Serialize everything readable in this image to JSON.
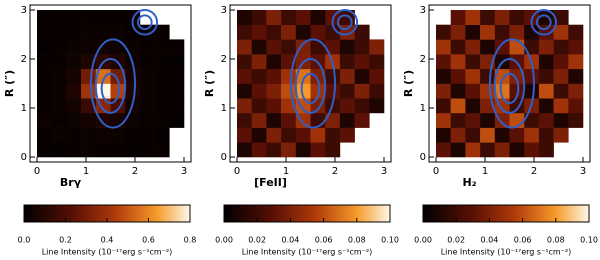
{
  "chart_data": [
    {
      "type": "heatmap",
      "x_label": "Brγ",
      "y_label": "R (″)",
      "xlim": [
        0,
        3
      ],
      "ylim": [
        0,
        3
      ],
      "xticks": [
        0,
        1,
        2,
        3
      ],
      "yticks": [
        0,
        1,
        2,
        3
      ],
      "zlim": [
        0,
        0.8
      ],
      "zticks": [
        {
          "value": 0,
          "label": "0.0"
        },
        0.2,
        0.4,
        0.6,
        0.8
      ],
      "colorbar_label": "Line Intensity (10⁻¹⁷erg s⁻¹cm⁻²)",
      "contour_color": "#2f5fc8",
      "z": [
        [
          0.02,
          0.01,
          0.02,
          0.03,
          0.02,
          0.02,
          0.01,
          0.02,
          0.02,
          null
        ],
        [
          0.02,
          0.03,
          0.02,
          0.03,
          0.04,
          0.03,
          0.02,
          0.02,
          0.01,
          null
        ],
        [
          0.03,
          0.02,
          0.03,
          0.05,
          0.08,
          0.06,
          0.03,
          0.02,
          0.02,
          0.01
        ],
        [
          0.02,
          0.03,
          0.05,
          0.15,
          0.35,
          0.2,
          0.05,
          0.03,
          0.02,
          0.02
        ],
        [
          0.02,
          0.03,
          0.08,
          0.4,
          0.8,
          0.45,
          0.08,
          0.03,
          0.02,
          0.02
        ],
        [
          0.02,
          0.03,
          0.06,
          0.3,
          0.55,
          0.3,
          0.06,
          0.03,
          0.02,
          0.02
        ],
        [
          0.02,
          0.02,
          0.04,
          0.08,
          0.12,
          0.08,
          0.04,
          0.02,
          0.02,
          0.01
        ],
        [
          0.01,
          0.02,
          0.03,
          0.04,
          0.05,
          0.04,
          0.03,
          0.02,
          0.02,
          0.02
        ],
        [
          0.02,
          0.02,
          0.02,
          0.03,
          0.03,
          0.03,
          0.02,
          0.02,
          0.02,
          null
        ],
        [
          0.02,
          0.02,
          0.02,
          0.02,
          0.02,
          0.02,
          0.02,
          null,
          null,
          null
        ]
      ],
      "contours": [
        {
          "x": 1.55,
          "y": 1.5,
          "rx": 0.45,
          "ry": 0.9
        },
        {
          "x": 1.5,
          "y": 1.45,
          "rx": 0.3,
          "ry": 0.55
        },
        {
          "x": 1.5,
          "y": 1.4,
          "rx": 0.18,
          "ry": 0.3
        },
        {
          "x": 2.2,
          "y": 2.75,
          "rx": 0.25,
          "ry": 0.25
        },
        {
          "x": 2.2,
          "y": 2.75,
          "rx": 0.14,
          "ry": 0.14
        }
      ]
    },
    {
      "type": "heatmap",
      "x_label": "[FeII]",
      "y_label": "R (″)",
      "xlim": [
        0,
        3
      ],
      "ylim": [
        0,
        3
      ],
      "xticks": [
        0,
        1,
        2,
        3
      ],
      "yticks": [
        0,
        1,
        2,
        3
      ],
      "zlim": [
        0,
        0.1
      ],
      "zticks": [
        {
          "value": 0,
          "label": "0.00"
        },
        {
          "value": 0.02,
          "label": "0.02"
        },
        {
          "value": 0.04,
          "label": "0.04"
        },
        {
          "value": 0.06,
          "label": "0.06"
        },
        {
          "value": 0.08,
          "label": "0.08"
        },
        {
          "value": 0.1,
          "label": "0.10"
        }
      ],
      "colorbar_label": "Line Intensity (10⁻¹⁷erg s⁻¹cm⁻²)",
      "contour_color": "#2f5fc8",
      "z": [
        [
          0.01,
          0.03,
          0.02,
          0.04,
          0.01,
          0.03,
          0.02,
          null,
          null,
          null
        ],
        [
          0.03,
          0.01,
          0.04,
          0.02,
          0.03,
          0.05,
          0.02,
          0.03,
          null,
          null
        ],
        [
          0.02,
          0.04,
          0.01,
          0.03,
          0.05,
          0.02,
          0.04,
          0.01,
          0.03,
          null
        ],
        [
          0.04,
          0.02,
          0.03,
          0.05,
          0.06,
          0.04,
          0.02,
          0.03,
          0.02,
          0.01
        ],
        [
          0.01,
          0.03,
          0.04,
          0.06,
          0.08,
          0.05,
          0.03,
          0.02,
          0.04,
          0.02
        ],
        [
          0.03,
          0.02,
          0.03,
          0.05,
          0.07,
          0.04,
          0.02,
          0.04,
          0.01,
          0.03
        ],
        [
          0.02,
          0.04,
          0.01,
          0.03,
          0.04,
          0.03,
          0.05,
          0.02,
          0.03,
          0.02
        ],
        [
          0.04,
          0.01,
          0.03,
          0.02,
          0.04,
          0.02,
          0.03,
          0.01,
          0.02,
          0.04
        ],
        [
          0.02,
          0.03,
          0.02,
          0.04,
          0.01,
          0.03,
          0.02,
          0.04,
          0.02,
          null
        ],
        [
          0.01,
          0.02,
          0.04,
          0.02,
          0.03,
          0.01,
          0.03,
          0.02,
          null,
          null
        ]
      ],
      "contours": [
        {
          "x": 1.55,
          "y": 1.5,
          "rx": 0.45,
          "ry": 0.9
        },
        {
          "x": 1.5,
          "y": 1.45,
          "rx": 0.3,
          "ry": 0.55
        },
        {
          "x": 1.5,
          "y": 1.4,
          "rx": 0.18,
          "ry": 0.3
        },
        {
          "x": 2.2,
          "y": 2.75,
          "rx": 0.25,
          "ry": 0.25
        },
        {
          "x": 2.2,
          "y": 2.75,
          "rx": 0.14,
          "ry": 0.14
        }
      ]
    },
    {
      "type": "heatmap",
      "x_label": "H₂",
      "y_label": "R (″)",
      "xlim": [
        0,
        3
      ],
      "ylim": [
        0,
        3
      ],
      "xticks": [
        0,
        1,
        2,
        3
      ],
      "yticks": [
        0,
        1,
        2,
        3
      ],
      "zlim": [
        0,
        0.1
      ],
      "zticks": [
        {
          "value": 0,
          "label": "0.00"
        },
        {
          "value": 0.02,
          "label": "0.02"
        },
        {
          "value": 0.04,
          "label": "0.04"
        },
        {
          "value": 0.06,
          "label": "0.06"
        },
        {
          "value": 0.08,
          "label": "0.08"
        },
        {
          "value": 0.1,
          "label": "0.10"
        }
      ],
      "colorbar_label": "Line Intensity (10⁻¹⁷erg s⁻¹cm⁻²)",
      "contour_color": "#2f5fc8",
      "z": [
        [
          0.03,
          0.01,
          0.05,
          0.02,
          0.04,
          0.01,
          0.03,
          0.02,
          null,
          null
        ],
        [
          0.01,
          0.04,
          0.02,
          0.06,
          0.01,
          0.03,
          0.05,
          0.02,
          0.04,
          null
        ],
        [
          0.05,
          0.02,
          0.03,
          0.01,
          0.04,
          0.06,
          0.02,
          0.03,
          0.01,
          0.02
        ],
        [
          0.02,
          0.06,
          0.01,
          0.04,
          0.05,
          0.02,
          0.04,
          0.01,
          0.05,
          0.03
        ],
        [
          0.04,
          0.01,
          0.03,
          0.05,
          0.07,
          0.03,
          0.01,
          0.06,
          0.02,
          0.04
        ],
        [
          0.01,
          0.03,
          0.05,
          0.02,
          0.06,
          0.04,
          0.03,
          0.02,
          0.04,
          0.01
        ],
        [
          0.03,
          0.05,
          0.02,
          0.04,
          0.01,
          0.03,
          0.05,
          0.01,
          0.03,
          0.05
        ],
        [
          0.05,
          0.02,
          0.04,
          0.01,
          0.03,
          0.06,
          0.02,
          0.04,
          0.02,
          0.03
        ],
        [
          0.02,
          0.04,
          0.01,
          0.05,
          0.02,
          0.04,
          0.01,
          0.03,
          0.05,
          0.02
        ],
        [
          null,
          0.03,
          0.05,
          0.02,
          0.04,
          0.02,
          0.03,
          0.01,
          0.02,
          null
        ]
      ],
      "contours": [
        {
          "x": 1.55,
          "y": 1.5,
          "rx": 0.45,
          "ry": 0.9
        },
        {
          "x": 1.5,
          "y": 1.45,
          "rx": 0.3,
          "ry": 0.55
        },
        {
          "x": 1.5,
          "y": 1.4,
          "rx": 0.18,
          "ry": 0.3
        },
        {
          "x": 2.2,
          "y": 2.75,
          "rx": 0.25,
          "ry": 0.25
        },
        {
          "x": 2.2,
          "y": 2.75,
          "rx": 0.14,
          "ry": 0.14
        }
      ]
    }
  ]
}
